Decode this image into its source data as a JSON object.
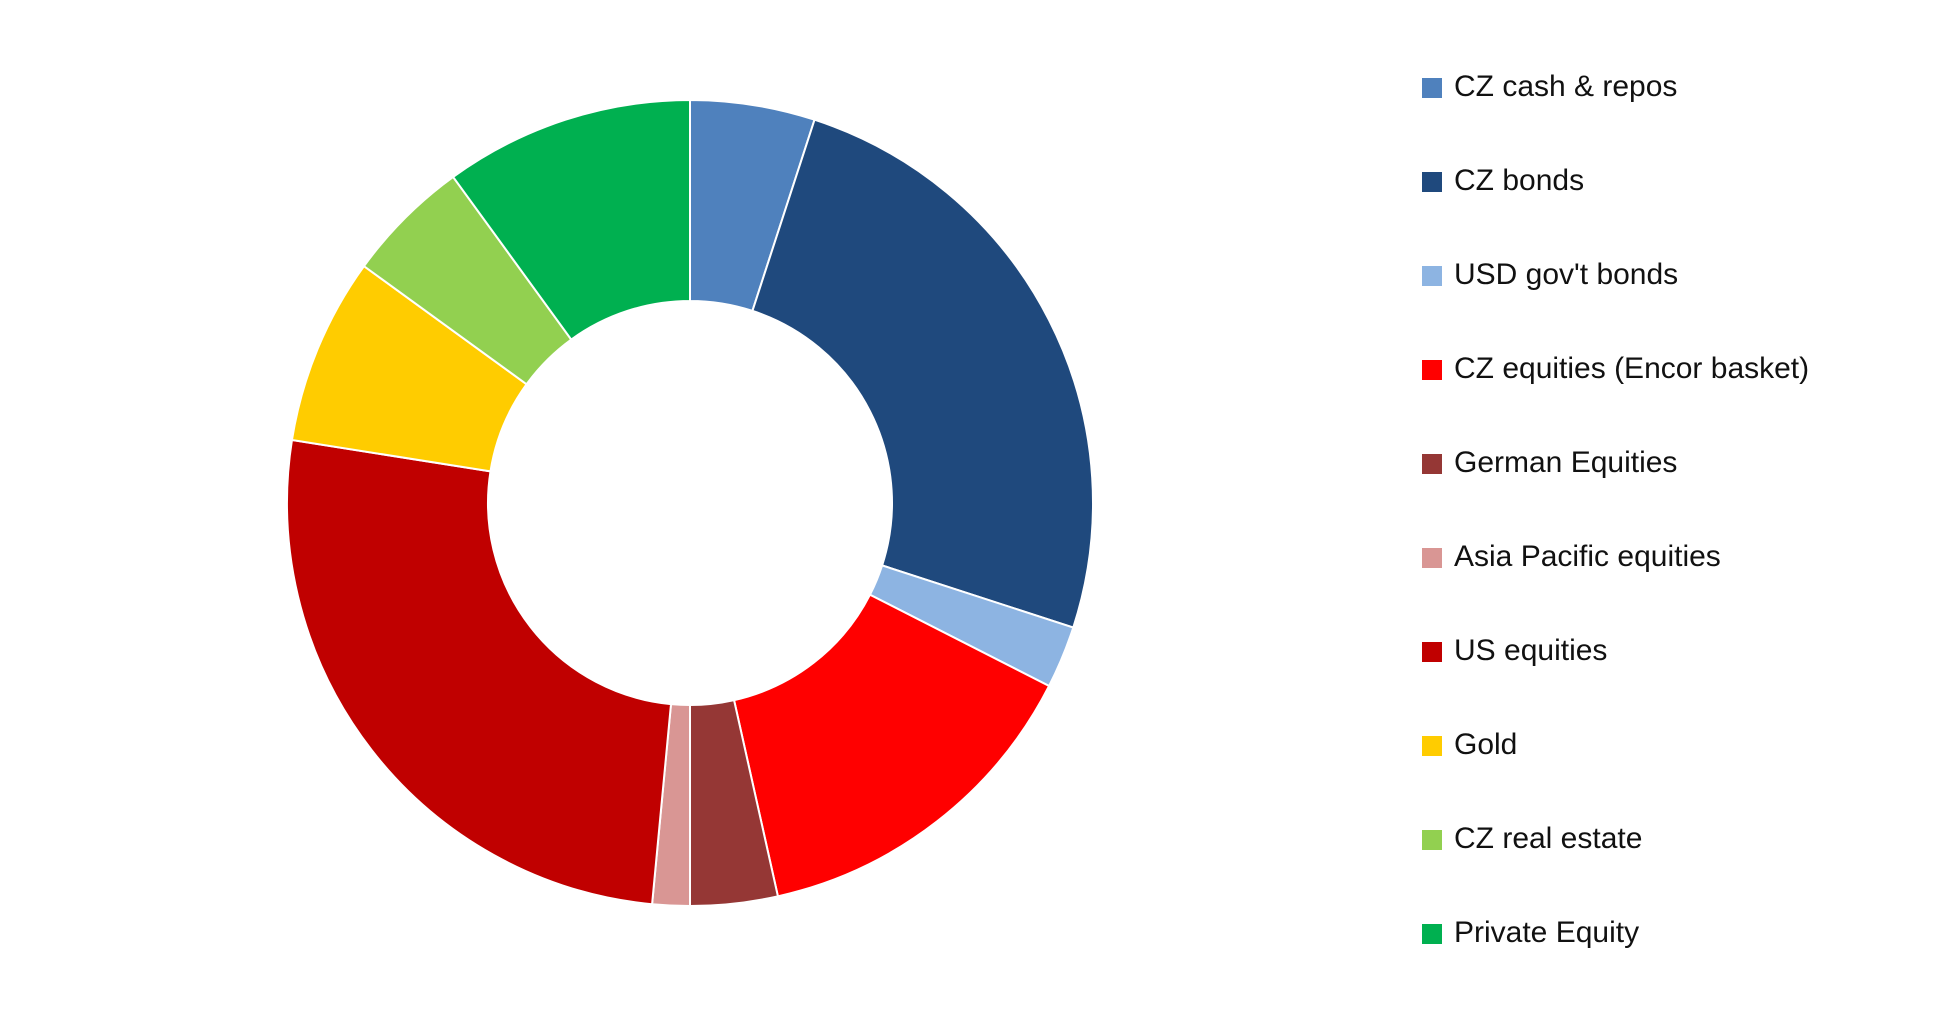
{
  "chart_data": {
    "type": "pie",
    "variant": "donut",
    "title": "",
    "legend_position": "right",
    "slices": [
      {
        "label": "CZ cash & repos",
        "value": 5,
        "color": "#4F81BD"
      },
      {
        "label": "CZ bonds",
        "value": 25,
        "color": "#1F497D"
      },
      {
        "label": "USD gov't bonds",
        "value": 2.5,
        "color": "#8DB4E2"
      },
      {
        "label": "CZ equities (Encor basket)",
        "value": 14,
        "color": "#FF0000"
      },
      {
        "label": "German Equities",
        "value": 3.5,
        "color": "#953735"
      },
      {
        "label": "Asia Pacific equities",
        "value": 1.5,
        "color": "#D99694"
      },
      {
        "label": "US equities",
        "value": 26,
        "color": "#C00000"
      },
      {
        "label": "Gold",
        "value": 7.5,
        "color": "#FFCC00"
      },
      {
        "label": "CZ real estate",
        "value": 5,
        "color": "#92D050"
      },
      {
        "label": "Private Equity",
        "value": 10,
        "color": "#00B050"
      }
    ]
  }
}
